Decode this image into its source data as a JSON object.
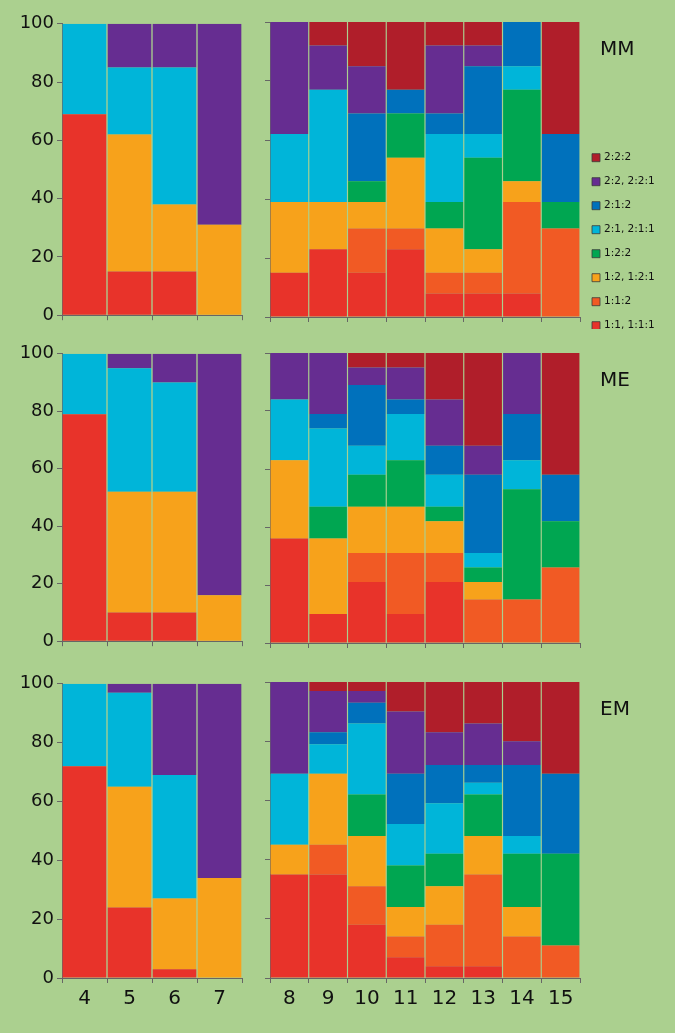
{
  "chart_data": [
    {
      "type": "bar",
      "stacked": true,
      "categories": [
        "4",
        "5",
        "6",
        "7"
      ],
      "ylim": [
        0,
        100
      ],
      "yticks": [
        0,
        20,
        40,
        60,
        80,
        100
      ],
      "tick_labels": "y",
      "series": [
        {
          "color": "#e8332a",
          "values": [
            69,
            15,
            15,
            null
          ]
        },
        {
          "color": "#f7a21b",
          "values": [
            null,
            47,
            23,
            31
          ]
        },
        {
          "color": "#00b5d9",
          "values": [
            31,
            23,
            47,
            null
          ]
        },
        {
          "color": "#662d91",
          "values": [
            null,
            15,
            15,
            69
          ]
        }
      ]
    },
    {
      "type": "bar",
      "stacked": true,
      "annotations": [
        "MM"
      ],
      "legend": "right",
      "categories": [
        "8",
        "9",
        "10",
        "11",
        "12",
        "13",
        "14",
        "15"
      ],
      "ylim": [
        0,
        100
      ],
      "yticks": [
        0,
        20,
        40,
        60,
        80,
        100
      ],
      "tick_labels": false,
      "series": [
        {
          "name": "1:1, 1:1:1",
          "color": "#e8332a",
          "values": [
            15,
            23,
            15,
            23,
            8,
            8,
            8,
            null
          ]
        },
        {
          "name": "1:1:2",
          "color": "#f15a24",
          "values": [
            null,
            null,
            15,
            7,
            7,
            7,
            31,
            30
          ]
        },
        {
          "name": "1:2, 1:2:1",
          "color": "#f7a21b",
          "values": [
            24,
            16,
            9,
            24,
            15,
            8,
            7,
            null
          ]
        },
        {
          "name": "1:2:2",
          "color": "#00a651",
          "values": [
            null,
            null,
            7,
            15,
            9,
            31,
            31,
            9
          ]
        },
        {
          "name": "2:1, 2:1:1",
          "color": "#00b5d9",
          "values": [
            23,
            38,
            null,
            null,
            23,
            8,
            8,
            null
          ]
        },
        {
          "name": "2:1:2",
          "color": "#0071bc",
          "values": [
            null,
            null,
            23,
            8,
            7,
            23,
            15,
            23
          ]
        },
        {
          "name": "2:2, 2:2:1",
          "color": "#662d91",
          "values": [
            38,
            15,
            16,
            null,
            23,
            7,
            null,
            null
          ]
        },
        {
          "name": "2:2:2",
          "color": "#b01e2a",
          "values": [
            null,
            8,
            15,
            23,
            8,
            8,
            null,
            38
          ]
        }
      ]
    },
    {
      "type": "bar",
      "stacked": true,
      "categories": [
        "4",
        "5",
        "6",
        "7"
      ],
      "ylim": [
        0,
        100
      ],
      "yticks": [
        0,
        20,
        40,
        60,
        80,
        100
      ],
      "tick_labels": "y",
      "series": [
        {
          "color": "#e8332a",
          "values": [
            79,
            10,
            10,
            null
          ]
        },
        {
          "color": "#f7a21b",
          "values": [
            null,
            42,
            42,
            16
          ]
        },
        {
          "color": "#00b5d9",
          "values": [
            21,
            43,
            38,
            null
          ]
        },
        {
          "color": "#662d91",
          "values": [
            null,
            5,
            10,
            84
          ]
        }
      ]
    },
    {
      "type": "bar",
      "stacked": true,
      "annotations": [
        "ME"
      ],
      "categories": [
        "8",
        "9",
        "10",
        "11",
        "12",
        "13",
        "14",
        "15"
      ],
      "ylim": [
        0,
        100
      ],
      "yticks": [
        0,
        20,
        40,
        60,
        80,
        100
      ],
      "tick_labels": false,
      "series": [
        {
          "color": "#e8332a",
          "values": [
            36,
            10,
            21,
            10,
            21,
            null,
            null,
            null
          ]
        },
        {
          "color": "#f15a24",
          "values": [
            null,
            null,
            10,
            21,
            10,
            15,
            15,
            26
          ]
        },
        {
          "color": "#f7a21b",
          "values": [
            27,
            26,
            16,
            16,
            11,
            6,
            null,
            null
          ]
        },
        {
          "color": "#00a651",
          "values": [
            null,
            11,
            11,
            16,
            5,
            5,
            38,
            16
          ]
        },
        {
          "color": "#00b5d9",
          "values": [
            21,
            27,
            10,
            16,
            11,
            5,
            10,
            null
          ]
        },
        {
          "color": "#0071bc",
          "values": [
            null,
            5,
            21,
            5,
            10,
            27,
            16,
            16
          ]
        },
        {
          "color": "#662d91",
          "values": [
            16,
            21,
            6,
            11,
            16,
            10,
            21,
            null
          ]
        },
        {
          "color": "#b01e2a",
          "values": [
            null,
            null,
            5,
            5,
            16,
            32,
            null,
            42
          ]
        }
      ]
    },
    {
      "type": "bar",
      "stacked": true,
      "categories": [
        "4",
        "5",
        "6",
        "7"
      ],
      "ylim": [
        0,
        100
      ],
      "yticks": [
        0,
        20,
        40,
        60,
        80,
        100
      ],
      "series": [
        {
          "color": "#e8332a",
          "values": [
            72,
            24,
            3,
            null
          ]
        },
        {
          "color": "#f7a21b",
          "values": [
            null,
            41,
            24,
            34
          ]
        },
        {
          "color": "#00b5d9",
          "values": [
            28,
            32,
            42,
            null
          ]
        },
        {
          "color": "#662d91",
          "values": [
            null,
            3,
            31,
            66
          ]
        }
      ]
    },
    {
      "type": "bar",
      "stacked": true,
      "annotations": [
        "EM"
      ],
      "categories": [
        "8",
        "9",
        "10",
        "11",
        "12",
        "13",
        "14",
        "15"
      ],
      "ylim": [
        0,
        100
      ],
      "yticks": [
        0,
        20,
        40,
        60,
        80,
        100
      ],
      "tick_labels": "x",
      "series": [
        {
          "color": "#e8332a",
          "values": [
            35,
            35,
            18,
            7,
            4,
            4,
            null,
            null
          ]
        },
        {
          "color": "#f15a24",
          "values": [
            null,
            10,
            13,
            7,
            14,
            31,
            14,
            11
          ]
        },
        {
          "color": "#f7a21b",
          "values": [
            10,
            24,
            17,
            10,
            13,
            13,
            10,
            null
          ]
        },
        {
          "color": "#00a651",
          "values": [
            null,
            null,
            14,
            14,
            11,
            14,
            18,
            31
          ]
        },
        {
          "color": "#00b5d9",
          "values": [
            24,
            10,
            24,
            14,
            17,
            4,
            6,
            null
          ]
        },
        {
          "color": "#0071bc",
          "values": [
            null,
            4,
            7,
            17,
            13,
            6,
            24,
            27
          ]
        },
        {
          "color": "#662d91",
          "values": [
            31,
            14,
            4,
            21,
            11,
            14,
            8,
            null
          ]
        },
        {
          "color": "#b01e2a",
          "values": [
            null,
            3,
            3,
            10,
            17,
            14,
            20,
            31
          ]
        }
      ]
    }
  ]
}
